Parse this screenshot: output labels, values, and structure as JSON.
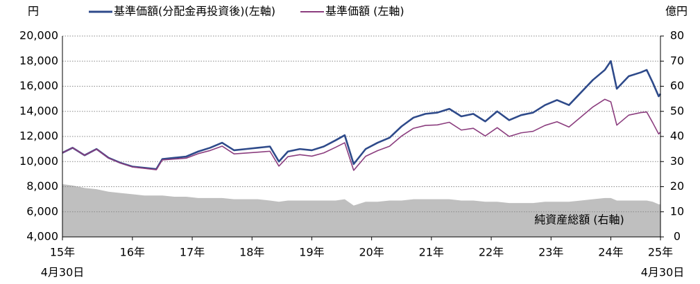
{
  "chart_data": {
    "type": "line",
    "y_unit": "円",
    "y2_unit": "億円",
    "area_label": "純資産総額 (右軸)",
    "x_start_note": "4月30日",
    "x_end_note": "4月30日",
    "x": [
      2015.33,
      2015.5,
      2015.7,
      2015.9,
      2016.1,
      2016.3,
      2016.5,
      2016.7,
      2016.9,
      2017.0,
      2017.2,
      2017.4,
      2017.6,
      2017.8,
      2018.0,
      2018.2,
      2018.4,
      2018.6,
      2018.8,
      2018.95,
      2019.1,
      2019.3,
      2019.5,
      2019.7,
      2019.9,
      2020.05,
      2020.2,
      2020.4,
      2020.6,
      2020.8,
      2021.0,
      2021.2,
      2021.4,
      2021.6,
      2021.8,
      2022.0,
      2022.2,
      2022.4,
      2022.6,
      2022.8,
      2023.0,
      2023.2,
      2023.4,
      2023.6,
      2023.8,
      2024.0,
      2024.2,
      2024.4,
      2024.5,
      2024.6,
      2024.8,
      2025.0,
      2025.1,
      2025.2,
      2025.3,
      2025.33
    ],
    "series": [
      {
        "name": "基準価額(分配金再投資後)(左軸)",
        "color": "#2e4a8a",
        "values": [
          10700,
          11100,
          10500,
          11000,
          10300,
          9900,
          9600,
          9500,
          9400,
          10200,
          10300,
          10400,
          10800,
          11100,
          11500,
          10900,
          11000,
          11100,
          11200,
          10000,
          10800,
          11000,
          10900,
          11200,
          11700,
          12100,
          9800,
          11000,
          11500,
          11900,
          12800,
          13500,
          13800,
          13900,
          14200,
          13600,
          13800,
          13200,
          14000,
          13300,
          13700,
          13900,
          14500,
          14900,
          14500,
          15500,
          16500,
          17300,
          18000,
          15800,
          16800,
          17100,
          17300,
          16300,
          15200,
          15400
        ]
      },
      {
        "name": "基準価額 (左軸)",
        "color": "#8b3d7e",
        "values": [
          10700,
          11100,
          10500,
          10990,
          10280,
          9880,
          9570,
          9460,
          9350,
          10130,
          10200,
          10270,
          10630,
          10880,
          11230,
          10610,
          10680,
          10750,
          10820,
          9640,
          10390,
          10550,
          10430,
          10690,
          11140,
          11500,
          9300,
          10420,
          10870,
          11220,
          12030,
          12650,
          12880,
          12920,
          13130,
          12510,
          12650,
          12040,
          12700,
          12000,
          12290,
          12410,
          12880,
          13170,
          12750,
          13550,
          14350,
          14960,
          14760,
          12900,
          13700,
          13900,
          13950,
          13100,
          12200,
          12350
        ]
      },
      {
        "name": "純資産総額",
        "color": "#bfbfbf",
        "axis": "y2",
        "style": "area",
        "values": [
          21,
          20.5,
          19.5,
          19,
          18,
          17.5,
          17,
          16.5,
          16.5,
          16.5,
          16,
          16,
          15.5,
          15.5,
          15.5,
          15,
          15,
          15,
          14.5,
          14,
          14.5,
          14.5,
          14.5,
          14.5,
          14.5,
          15,
          12.5,
          14,
          14,
          14.5,
          14.5,
          15,
          15,
          15,
          15,
          14.5,
          14.5,
          14,
          14,
          13.5,
          13.5,
          13.5,
          14,
          14,
          14,
          14.5,
          15,
          15.5,
          15.5,
          14.5,
          14.5,
          14.5,
          14.5,
          14,
          13,
          13
        ]
      }
    ],
    "xlim": [
      2015.33,
      2025.33
    ],
    "xticks": [
      {
        "value": 2015.33,
        "label": "15年"
      },
      {
        "value": 2016.5,
        "label": "16年"
      },
      {
        "value": 2017.5,
        "label": "17年"
      },
      {
        "value": 2018.5,
        "label": "18年"
      },
      {
        "value": 2019.5,
        "label": "19年"
      },
      {
        "value": 2020.5,
        "label": "20年"
      },
      {
        "value": 2021.5,
        "label": "21年"
      },
      {
        "value": 2022.5,
        "label": "22年"
      },
      {
        "value": 2023.5,
        "label": "23年"
      },
      {
        "value": 2024.5,
        "label": "24年"
      },
      {
        "value": 2025.33,
        "label": "25年"
      }
    ],
    "ylim": [
      4000,
      20000
    ],
    "yticks": [
      {
        "value": 4000,
        "label": "4,000"
      },
      {
        "value": 6000,
        "label": "6,000"
      },
      {
        "value": 8000,
        "label": "8,000"
      },
      {
        "value": 10000,
        "label": "10,000"
      },
      {
        "value": 12000,
        "label": "12,000"
      },
      {
        "value": 14000,
        "label": "14,000"
      },
      {
        "value": 16000,
        "label": "16,000"
      },
      {
        "value": 18000,
        "label": "18,000"
      },
      {
        "value": 20000,
        "label": "20,000"
      }
    ],
    "y2lim": [
      0,
      80
    ],
    "y2ticks": [
      0,
      10,
      20,
      30,
      40,
      50,
      60,
      70,
      80
    ],
    "grid": true
  }
}
